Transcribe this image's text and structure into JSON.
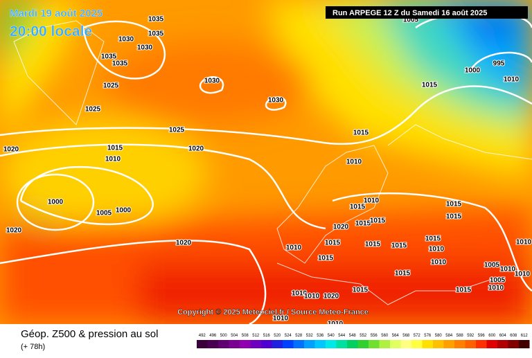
{
  "header": {
    "date": "Mardi 19 août 2025",
    "time": "20:00 locale",
    "run": "Run ARPEGE 12 Z du Samedi 16 août 2025"
  },
  "copyright": "Copyright © 2025 Meteociel.fr / Source Meteo-France",
  "footer": {
    "title": "Géop. Z500 & pression au sol",
    "lead": "(+ 78h)"
  },
  "scale": {
    "values": [
      492,
      496,
      500,
      504,
      508,
      512,
      516,
      520,
      524,
      528,
      532,
      536,
      540,
      544,
      548,
      552,
      556,
      560,
      564,
      568,
      572,
      576,
      580,
      584,
      588,
      592,
      596,
      600,
      604,
      608,
      612
    ],
    "colors": [
      "#3a003a",
      "#4a0050",
      "#600070",
      "#7a0090",
      "#9000b0",
      "#7000c0",
      "#5000d0",
      "#2020e0",
      "#0040ff",
      "#0070ff",
      "#00a0ff",
      "#00c8ff",
      "#00e8e8",
      "#00e0a0",
      "#00d060",
      "#30d030",
      "#70e030",
      "#b0f040",
      "#e0ff60",
      "#ffff80",
      "#ffff40",
      "#ffe000",
      "#ffc000",
      "#ffa000",
      "#ff8000",
      "#ff6000",
      "#ff3000",
      "#e00000",
      "#b00000",
      "#800000",
      "#400000"
    ]
  },
  "isobars": [
    "1035",
    "1035",
    "1030",
    "1030",
    "1035",
    "1035",
    "1025",
    "1030",
    "1030",
    "1025",
    "1025",
    "1020",
    "1015",
    "1020",
    "1010",
    "1000",
    "1005",
    "1000",
    "1020",
    "1020",
    "1005",
    "1000",
    "995",
    "1010",
    "1015",
    "1015",
    "1010",
    "1010",
    "1015",
    "1015",
    "1015",
    "1020",
    "1015",
    "1015",
    "1015",
    "1015",
    "1015",
    "1015",
    "1010",
    "1010",
    "1015",
    "1015",
    "1010",
    "1010",
    "1005",
    "1010",
    "1010",
    "1005",
    "1010",
    "1015",
    "1015",
    "1010",
    "1010",
    "1020",
    "1010",
    "1010"
  ]
}
